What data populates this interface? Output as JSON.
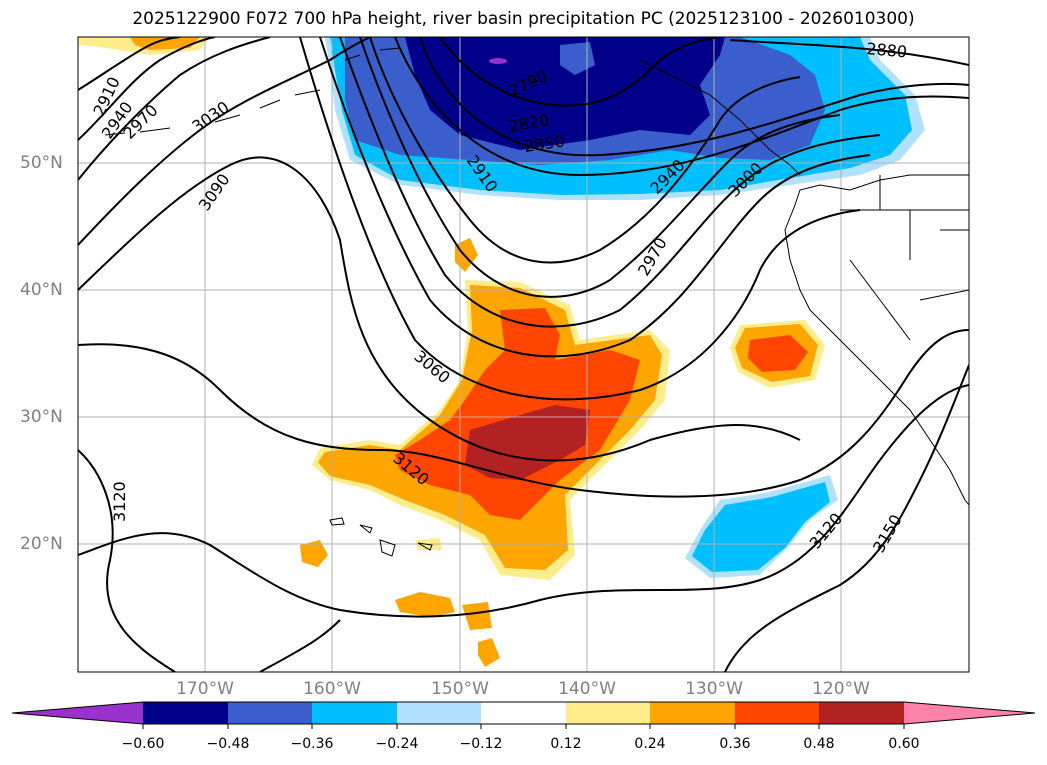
{
  "title": "2025122900 F072 700 hPa height, river basin precipitation PC (2025123100 - 2026010300)",
  "lat_labels": [
    "50°N",
    "40°N",
    "30°N",
    "20°N"
  ],
  "lon_labels": [
    "170°W",
    "160°W",
    "150°W",
    "140°W",
    "130°W",
    "120°W"
  ],
  "contour_labels": [
    "2910",
    "2940",
    "2970",
    "3030",
    "3090",
    "2790",
    "2820",
    "2850",
    "2880",
    "2910",
    "2940",
    "2970",
    "3000",
    "3060",
    "3120",
    "3120",
    "3120",
    "3150"
  ],
  "colorbar": {
    "ticks": [
      "−0.60",
      "−0.48",
      "−0.36",
      "−0.24",
      "−0.12",
      "0.12",
      "0.24",
      "0.36",
      "0.48",
      "0.60"
    ],
    "colors": [
      "#9932cc",
      "#00008b",
      "#3a5fcd",
      "#00bfff",
      "#b0e2ff",
      "#ffffff",
      "#ffec8b",
      "#ffa500",
      "#ff4500",
      "#b22222",
      "#ff82ab"
    ]
  },
  "chart_data": {
    "type": "map",
    "title": "2025122900 F072 700 hPa height, river basin precipitation PC (2025123100 - 2026010300)",
    "field": "700 hPa geopotential height (contours) with precipitation PC (shaded)",
    "lat_range": [
      "10°N",
      "60°N"
    ],
    "lon_range": [
      "180°",
      "110°W"
    ],
    "height_contours": [
      2790,
      2820,
      2850,
      2880,
      2910,
      2940,
      2970,
      3000,
      3030,
      3060,
      3090,
      3120,
      3150
    ],
    "shading_levels": [
      -0.6,
      -0.48,
      -0.36,
      -0.24,
      -0.12,
      0.12,
      0.24,
      0.36,
      0.48,
      0.6
    ],
    "grid": true
  }
}
